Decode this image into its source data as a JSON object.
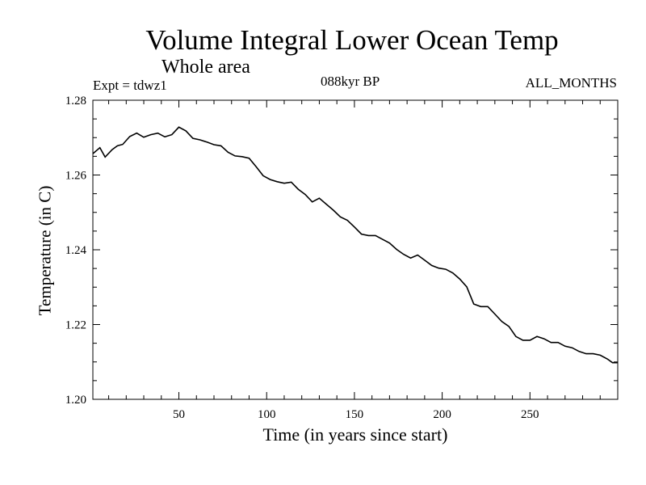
{
  "header": {
    "title": "Volume Integral Lower Ocean Temp",
    "subtitle": "Whole area",
    "experiment": "Expt = tdwz1",
    "period": "088kyr BP",
    "months": "ALL_MONTHS"
  },
  "chart_data": {
    "type": "line",
    "title": "Volume Integral Lower Ocean Temp",
    "subtitle": "Whole area",
    "xlabel": "Time (in years since start)",
    "ylabel": "Temperature (in C)",
    "xlim": [
      1,
      300
    ],
    "ylim": [
      1.2,
      1.28
    ],
    "x_ticks": [
      50,
      100,
      150,
      200,
      250
    ],
    "y_ticks": [
      "1.20",
      "1.22",
      "1.24",
      "1.26",
      "1.28"
    ],
    "grid": false,
    "series": [
      {
        "color": "#000000",
        "x": [
          1,
          5,
          8,
          12,
          15,
          18,
          22,
          26,
          30,
          34,
          38,
          42,
          46,
          50,
          54,
          58,
          62,
          66,
          70,
          74,
          78,
          82,
          86,
          90,
          94,
          98,
          102,
          106,
          110,
          114,
          118,
          122,
          126,
          130,
          134,
          138,
          142,
          146,
          150,
          154,
          158,
          162,
          166,
          170,
          174,
          178,
          182,
          186,
          190,
          194,
          198,
          202,
          206,
          210,
          214,
          218,
          222,
          226,
          230,
          234,
          238,
          242,
          246,
          250,
          254,
          258,
          262,
          266,
          270,
          274,
          278,
          282,
          286,
          290,
          294,
          297,
          300
        ],
        "values": [
          1.2657,
          1.2673,
          1.2648,
          1.2668,
          1.2678,
          1.2682,
          1.2703,
          1.2712,
          1.2701,
          1.2708,
          1.2712,
          1.2702,
          1.2708,
          1.2728,
          1.2718,
          1.2698,
          1.2694,
          1.2688,
          1.2681,
          1.2678,
          1.2661,
          1.2651,
          1.2649,
          1.2645,
          1.2622,
          1.2598,
          1.2588,
          1.2582,
          1.2578,
          1.2581,
          1.2562,
          1.2548,
          1.2528,
          1.2538,
          1.2522,
          1.2506,
          1.2488,
          1.2479,
          1.2461,
          1.2442,
          1.2438,
          1.2438,
          1.2428,
          1.2418,
          1.2401,
          1.2388,
          1.2378,
          1.2386,
          1.2372,
          1.2358,
          1.2351,
          1.2348,
          1.2338,
          1.2322,
          1.2301,
          1.2255,
          1.2248,
          1.2248,
          1.2228,
          1.2208,
          1.2195,
          1.2168,
          1.2158,
          1.2158,
          1.2168,
          1.2162,
          1.2152,
          1.2152,
          1.2142,
          1.2138,
          1.2128,
          1.2122,
          1.2122,
          1.2118,
          1.2108,
          1.2098,
          1.2098
        ]
      }
    ]
  }
}
